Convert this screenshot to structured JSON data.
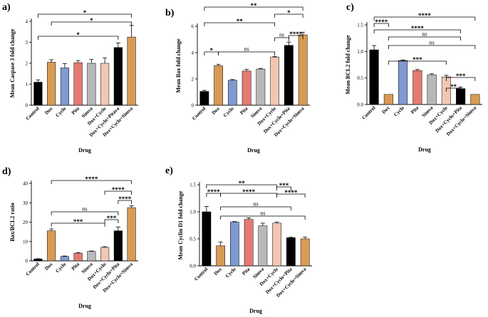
{
  "colors": {
    "Control": "#000000",
    "Dox": "#d99a55",
    "Cyclo": "#7f9ad0",
    "Pita": "#e57a72",
    "Simva": "#b8b8b8",
    "Dox+Cyclo": "#f2c7b2",
    "Dox+Cyclo+Pitava": "#000000",
    "Dox+Cyclo+Simva": "#d99a55"
  },
  "chart_data": [
    {
      "panel": "a)",
      "type": "bar",
      "ylabel": "Mean Caspase 3 fold change",
      "xlabel": "Drug",
      "ylim": [
        0,
        4
      ],
      "yticks": [
        0,
        1,
        2,
        3,
        4
      ],
      "categories": [
        "Control",
        "Dox",
        "Cyclo",
        "Pita",
        "Simva",
        "Dox+Cyclo",
        "Dox+Cyclo+Pitava",
        "Dox+Cyclo+Simva"
      ],
      "values": [
        1.1,
        2.05,
        1.78,
        2.03,
        2.0,
        2.0,
        2.75,
        3.25
      ],
      "errors": [
        0.1,
        0.12,
        0.2,
        0.1,
        0.18,
        0.25,
        0.22,
        0.55
      ],
      "significance": [
        {
          "from": 0,
          "to": 7,
          "label": "*"
        },
        {
          "from": 1,
          "to": 7,
          "label": "*"
        },
        {
          "from": 0,
          "to": 6,
          "label": "*"
        }
      ]
    },
    {
      "panel": "b)",
      "type": "bar",
      "ylabel": "Mean Bax fold change",
      "xlabel": "Drug",
      "ylim": [
        0,
        6
      ],
      "yticks": [
        0,
        2,
        4,
        6
      ],
      "categories": [
        "Control",
        "Dox",
        "Cyclo",
        "Pita",
        "Simva",
        "Dox+Cyclo",
        "Dox+Cyclo+Pita",
        "Dox+Cyclo+Simva"
      ],
      "values": [
        1.05,
        3.0,
        1.9,
        2.6,
        2.75,
        3.65,
        4.55,
        5.35
      ],
      "errors": [
        0.08,
        0.1,
        0.05,
        0.12,
        0.05,
        0.05,
        0.25,
        0.2
      ],
      "significance": [
        {
          "from": 0,
          "to": 7,
          "label": "**"
        },
        {
          "from": 5,
          "to": 7,
          "label": "*"
        },
        {
          "from": 0,
          "to": 5,
          "label": "**"
        },
        {
          "from": 5,
          "to": 6,
          "label": "ns"
        },
        {
          "from": 6,
          "to": 7,
          "label": "****"
        },
        {
          "from": 0,
          "to": 1,
          "label": "*"
        },
        {
          "from": 1,
          "to": 5,
          "label": "ns"
        }
      ]
    },
    {
      "panel": "c)",
      "type": "bar",
      "ylabel": "Mean BCL2 fold change",
      "xlabel": "Drug",
      "ylim": [
        0,
        1.5
      ],
      "yticks": [
        0.0,
        0.5,
        1.0,
        1.5
      ],
      "categories": [
        "Control",
        "Dox",
        "Cyclo",
        "Pita",
        "Simva",
        "Dox+Cyclo",
        "Dox+Cyclo+Pita",
        "Dox+Cyclo+Simva"
      ],
      "values": [
        1.03,
        0.19,
        0.83,
        0.64,
        0.56,
        0.52,
        0.3,
        0.19
      ],
      "errors": [
        0.08,
        0.0,
        0.01,
        0.02,
        0.02,
        0.03,
        0.03,
        0.0
      ],
      "significance": [
        {
          "from": 0,
          "to": 7,
          "label": "****"
        },
        {
          "from": 0,
          "to": 1,
          "label": "****"
        },
        {
          "from": 0,
          "to": 6,
          "label": "****"
        },
        {
          "from": 1,
          "to": 6,
          "label": "ns"
        },
        {
          "from": 1,
          "to": 7,
          "label": "ns"
        },
        {
          "from": 1,
          "to": 5,
          "label": "***"
        },
        {
          "from": 5,
          "to": 7,
          "label": "***"
        },
        {
          "from": 5,
          "to": 6,
          "label": "**"
        }
      ]
    },
    {
      "panel": "d)",
      "type": "bar",
      "ylabel": "Bax/BCL2 ratio",
      "xlabel": "Drug",
      "ylim": [
        0,
        40
      ],
      "yticks": [
        0,
        10,
        20,
        30,
        40
      ],
      "categories": [
        "Control",
        "Dox",
        "Cyclo",
        "Pita",
        "Simva",
        "Dox+Cyclo",
        "Dox+Cyclo+Pita",
        "Dox+Cyclo+Simva"
      ],
      "values": [
        1.0,
        15.5,
        2.3,
        4.0,
        4.9,
        7.0,
        15.5,
        27.5
      ],
      "errors": [
        0.1,
        1.0,
        0.2,
        0.3,
        0.2,
        0.3,
        2.0,
        1.0
      ],
      "significance": [
        {
          "from": 1,
          "to": 7,
          "label": "****"
        },
        {
          "from": 5,
          "to": 7,
          "label": "****"
        },
        {
          "from": 6,
          "to": 7,
          "label": "****"
        },
        {
          "from": 1,
          "to": 6,
          "label": "ns"
        },
        {
          "from": 5,
          "to": 6,
          "label": "***"
        },
        {
          "from": 1,
          "to": 5,
          "label": "***"
        }
      ]
    },
    {
      "panel": "e)",
      "type": "bar",
      "ylabel": "Mean Cyclin D1 fold change",
      "xlabel": "Drug",
      "ylim": [
        0,
        1.5
      ],
      "yticks": [
        0.0,
        0.5,
        1.0,
        1.5
      ],
      "categories": [
        "Control",
        "Dox",
        "Cyclo",
        "Pita",
        "Simva",
        "Dox+Cyclo",
        "Dox+Cyclo+Pita",
        "Dox+Cyclo+Simva"
      ],
      "values": [
        1.0,
        0.37,
        0.81,
        0.86,
        0.74,
        0.79,
        0.52,
        0.5
      ],
      "errors": [
        0.1,
        0.07,
        0.01,
        0.03,
        0.05,
        0.02,
        0.01,
        0.03
      ],
      "significance": [
        {
          "from": 0,
          "to": 5,
          "label": "**"
        },
        {
          "from": 5,
          "to": 6,
          "label": "***"
        },
        {
          "from": 0,
          "to": 1,
          "label": "****"
        },
        {
          "from": 1,
          "to": 5,
          "label": "****"
        },
        {
          "from": 5,
          "to": 7,
          "label": "****"
        },
        {
          "from": 1,
          "to": 6,
          "label": "ns"
        },
        {
          "from": 1,
          "to": 7,
          "label": "ns"
        }
      ]
    }
  ]
}
